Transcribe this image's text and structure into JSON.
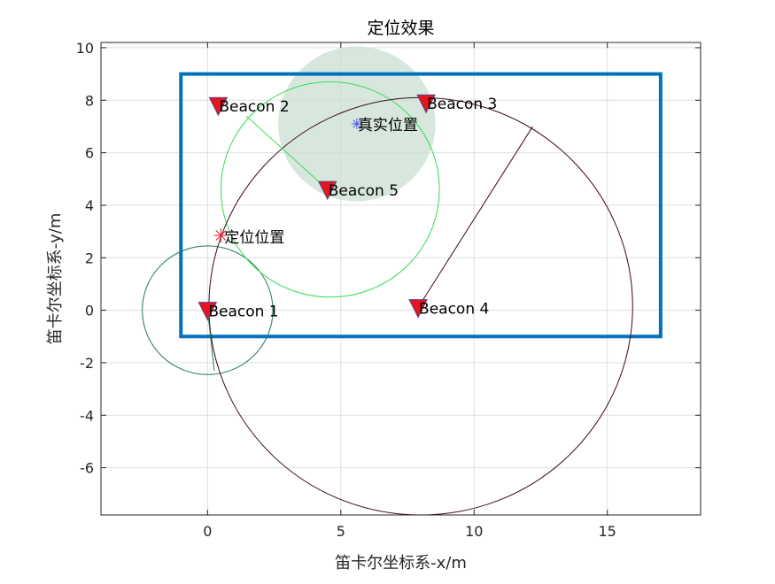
{
  "chart_data": {
    "type": "scatter",
    "title": "定位效果",
    "xlabel": "笛卡尔坐标系-x/m",
    "ylabel": "笛卡尔坐标系-y/m",
    "xlim": [
      -4,
      18.5
    ],
    "ylim": [
      -7.8,
      10.2
    ],
    "xticks": [
      0,
      5,
      10,
      15
    ],
    "yticks": [
      -6,
      -4,
      -2,
      0,
      2,
      4,
      6,
      8,
      10
    ],
    "grid": true,
    "boundary_rect": {
      "x1": -1,
      "y1": -1,
      "x2": 17,
      "y2": 9,
      "color": "#0072BD"
    },
    "true_region": {
      "cx": 5.6,
      "cy": 7.1,
      "r": 2.95,
      "color": "#C9DFD1"
    },
    "beacons": [
      {
        "label": "Beacon 1",
        "x": 0,
        "y": 0
      },
      {
        "label": "Beacon 2",
        "x": 0.4,
        "y": 7.8
      },
      {
        "label": "Beacon 3",
        "x": 8.2,
        "y": 7.9
      },
      {
        "label": "Beacon 4",
        "x": 7.9,
        "y": 0.1
      },
      {
        "label": "Beacon 5",
        "x": 4.5,
        "y": 4.6
      }
    ],
    "range_circles": [
      {
        "cx": 0,
        "cy": 0,
        "r": 2.45,
        "color": "#1F7A55"
      },
      {
        "cx": 4.6,
        "cy": 4.6,
        "r": 4.1,
        "color": "#33DD55"
      },
      {
        "cx": 8.0,
        "cy": 0.15,
        "r": 7.95,
        "color": "#3A0A18"
      }
    ],
    "radius_lines": [
      {
        "x1": 0,
        "y1": 0,
        "x2": 0.25,
        "y2": -2.3,
        "color": "#1F7A55"
      },
      {
        "x1": 4.5,
        "y1": 4.6,
        "x2": 1.45,
        "y2": 7.4,
        "color": "#33DD55"
      },
      {
        "x1": 7.9,
        "y1": 0.1,
        "x2": 12.2,
        "y2": 7.0,
        "color": "#3A0A18"
      }
    ],
    "true_position": {
      "label": "真实位置",
      "x": 5.6,
      "y": 7.1,
      "color": "#4A5BEF"
    },
    "estimated_position": {
      "label": "定位位置",
      "x": 0.5,
      "y": 2.85,
      "color": "#E8141E"
    },
    "colors": {
      "beacon_fill": "#E8141E",
      "beacon_edge": "#4A4A8A",
      "grid": "#DFDFDF",
      "axis": "#262626"
    }
  }
}
